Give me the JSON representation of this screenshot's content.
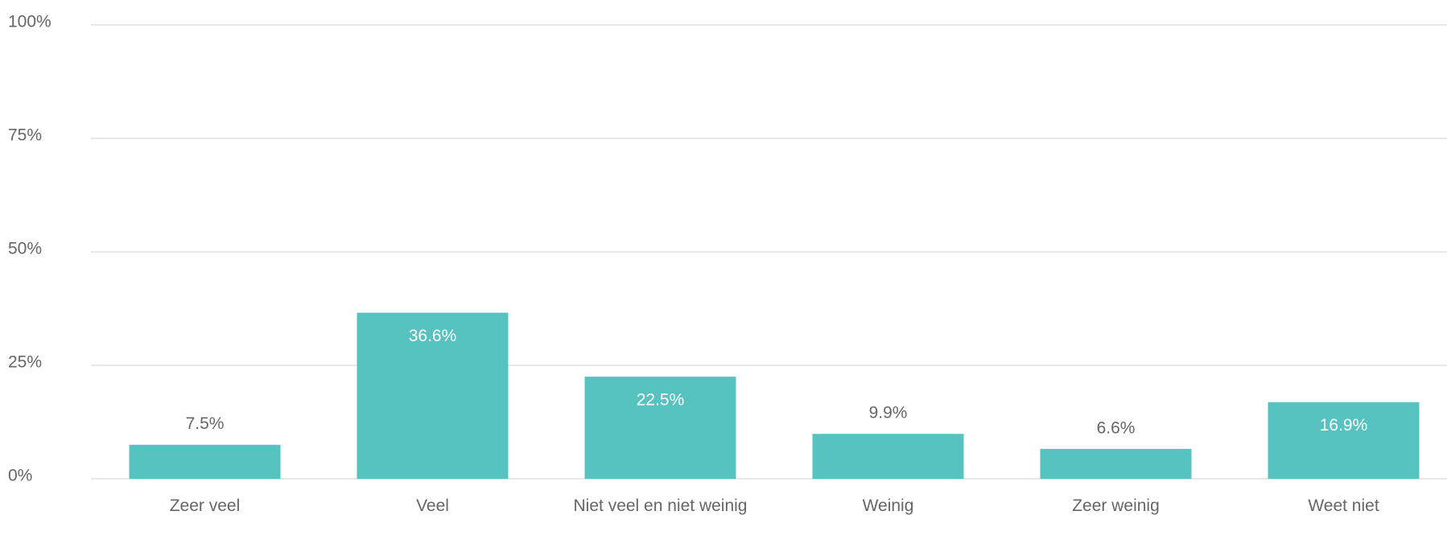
{
  "chart_data": {
    "type": "bar",
    "categories": [
      "Zeer veel",
      "Veel",
      "Niet veel en niet weinig",
      "Weinig",
      "Zeer weinig",
      "Weet niet"
    ],
    "values": [
      7.5,
      36.6,
      22.5,
      9.9,
      6.6,
      16.9
    ],
    "value_labels": [
      "7.5%",
      "36.6%",
      "22.5%",
      "9.9%",
      "6.6%",
      "16.9%"
    ],
    "color": "#57c3c0",
    "ylim": [
      0,
      100
    ],
    "yticks": [
      {
        "value": 0,
        "label": "0%"
      },
      {
        "value": 25,
        "label": "25%"
      },
      {
        "value": 50,
        "label": "50%"
      },
      {
        "value": 75,
        "label": "75%"
      },
      {
        "value": 100,
        "label": "100%"
      }
    ],
    "grid": true
  }
}
